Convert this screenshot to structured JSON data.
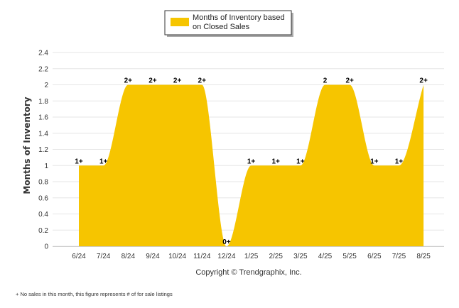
{
  "chart_data": {
    "type": "area",
    "categories": [
      "6/24",
      "7/24",
      "8/24",
      "9/24",
      "10/24",
      "11/24",
      "12/24",
      "1/25",
      "2/25",
      "3/25",
      "4/25",
      "5/25",
      "6/25",
      "7/25",
      "8/25"
    ],
    "series": [
      {
        "name": "Months of Inventory based on Closed Sales",
        "values": [
          1,
          1,
          2,
          2,
          2,
          2,
          0,
          1,
          1,
          1,
          2,
          2,
          1,
          1,
          2
        ],
        "data_labels": [
          "1+",
          "1+",
          "2+",
          "2+",
          "2+",
          "2+",
          "0+",
          "1+",
          "1+",
          "1+",
          "2",
          "2+",
          "1+",
          "1+",
          "2+"
        ]
      }
    ],
    "ylabel": "Months of Inventory",
    "xlabel": "",
    "ylim": [
      0,
      2.4
    ],
    "yticks": [
      "0",
      "0.2",
      "0.4",
      "0.6",
      "0.8",
      "1",
      "1.2",
      "1.4",
      "1.6",
      "1.8",
      "2",
      "2.2",
      "2.4"
    ],
    "grid": true,
    "legend_position": "top-center",
    "color": "#f6c500"
  },
  "legend": {
    "line1": "Months of Inventory based",
    "line2": "on Closed Sales"
  },
  "copyright": "Copyright © Trendgraphix, Inc.",
  "footnote": "+  No sales in this month, this figure represents # of for sale listings"
}
